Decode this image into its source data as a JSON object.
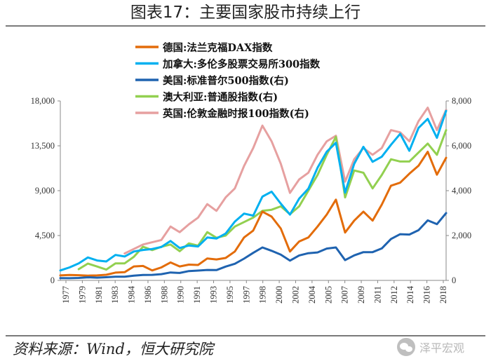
{
  "title": "图表17：主要国家股市持续上行",
  "source": "资料来源：Wind，恒大研究院",
  "watermark": "泽平宏观",
  "chart_data": {
    "type": "line",
    "x": [
      1977,
      1978,
      1979,
      1980,
      1981,
      1982,
      1983,
      1984,
      1985,
      1986,
      1987,
      1988,
      1989,
      1990,
      1991,
      1992,
      1993,
      1994,
      1995,
      1996,
      1997,
      1998,
      1999,
      2000,
      2001,
      2002,
      2003,
      2004,
      2005,
      2006,
      2007,
      2008,
      2009,
      2010,
      2011,
      2012,
      2013,
      2014,
      2015,
      2016,
      2017,
      2018,
      2019
    ],
    "x_tick_labels": [
      "1977",
      "1979",
      "1981",
      "1983",
      "1984",
      "1986",
      "1988",
      "1990",
      "1991",
      "1993",
      "1995",
      "1997",
      "1998",
      "2000",
      "2002",
      "2004",
      "2005",
      "2007",
      "2009",
      "2011",
      "2012",
      "2014",
      "2016",
      "2018"
    ],
    "y_left": {
      "range": [
        0,
        18000
      ],
      "ticks": [
        "0",
        "4,500",
        "9,000",
        "13,500",
        "18,000"
      ]
    },
    "y_right": {
      "range": [
        0,
        8000
      ],
      "ticks": [
        "0",
        "2,000",
        "4,000",
        "6,000",
        "8,000"
      ]
    },
    "series": [
      {
        "name": "德国:法兰克福DAX指数",
        "axis": "left",
        "color": "#E36C0A",
        "values": [
          500,
          540,
          520,
          480,
          500,
          560,
          780,
          820,
          1400,
          1450,
          1000,
          1300,
          1800,
          1400,
          1580,
          1550,
          2200,
          2100,
          2250,
          2900,
          4300,
          5000,
          6900,
          6400,
          5200,
          2900,
          3900,
          4300,
          5400,
          6600,
          8100,
          4800,
          6000,
          6900,
          6000,
          7600,
          9500,
          9800,
          10700,
          11500,
          12900,
          10600,
          12300
        ]
      },
      {
        "name": "加拿大:多伦多股票交易所300指数",
        "axis": "left",
        "color": "#00B0F0",
        "values": [
          1000,
          1300,
          1700,
          2300,
          2000,
          1900,
          2550,
          2400,
          2900,
          3050,
          3150,
          3350,
          3950,
          3250,
          3500,
          3400,
          4300,
          4200,
          4700,
          5900,
          6700,
          6500,
          8400,
          8900,
          7700,
          6600,
          8200,
          9200,
          11300,
          12900,
          13800,
          8800,
          11700,
          13400,
          11900,
          12400,
          13600,
          14700,
          13000,
          15300,
          16200,
          14300,
          17000
        ]
      },
      {
        "name": "美国:标准普尔500指数(右)",
        "axis": "right",
        "color": "#1F63B0",
        "values": [
          100,
          96,
          108,
          136,
          122,
          141,
          165,
          167,
          211,
          242,
          247,
          278,
          353,
          330,
          417,
          436,
          466,
          459,
          616,
          741,
          970,
          1229,
          1469,
          1320,
          1148,
          880,
          1112,
          1212,
          1248,
          1418,
          1468,
          903,
          1115,
          1258,
          1258,
          1426,
          1848,
          2059,
          2044,
          2239,
          2674,
          2507,
          3000
        ]
      },
      {
        "name": "澳大利亚:普通股指数(右)",
        "axis": "right",
        "color": "#92D050",
        "values": [
          null,
          null,
          500,
          750,
          620,
          480,
          760,
          760,
          1050,
          1500,
          1350,
          1500,
          1600,
          1300,
          1650,
          1550,
          2150,
          1900,
          2000,
          2400,
          2600,
          2800,
          3100,
          3150,
          3300,
          2950,
          3300,
          4000,
          4700,
          5600,
          6400,
          3700,
          4900,
          4800,
          4100,
          4700,
          5400,
          5300,
          5300,
          5700,
          6100,
          5600,
          6700
        ]
      },
      {
        "name": "英国:伦敦金融时报100指数(右)",
        "axis": "right",
        "color": "#E6A0A0",
        "values": [
          null,
          null,
          null,
          null,
          null,
          null,
          null,
          1200,
          1400,
          1600,
          1700,
          1800,
          2400,
          2150,
          2500,
          2800,
          3400,
          3100,
          3700,
          4100,
          5100,
          5900,
          6900,
          6200,
          5200,
          3900,
          4500,
          4800,
          5600,
          6200,
          6450,
          4400,
          5400,
          5900,
          5600,
          5900,
          6700,
          6600,
          6200,
          7100,
          7700,
          6700,
          7600
        ]
      }
    ]
  }
}
